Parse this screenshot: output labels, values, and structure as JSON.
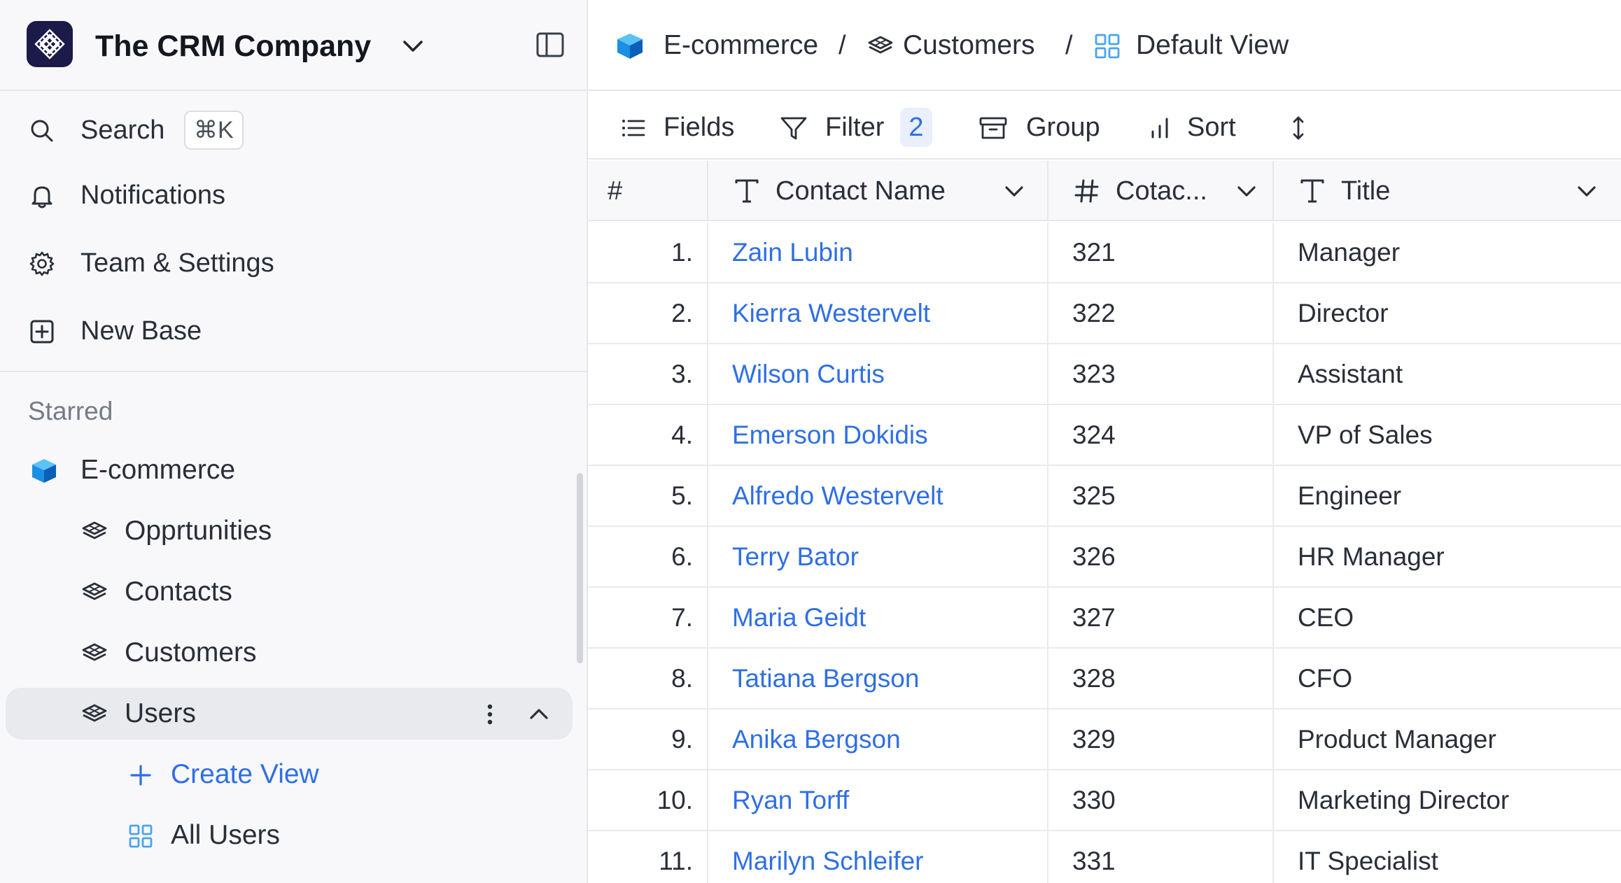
{
  "workspace": {
    "name": "The CRM Company"
  },
  "sidebar": {
    "search_label": "Search",
    "search_shortcut": "⌘K",
    "notifications_label": "Notifications",
    "settings_label": "Team & Settings",
    "new_base_label": "New Base",
    "starred_label": "Starred",
    "base": {
      "label": "E-commerce"
    },
    "tables": [
      {
        "label": "Opprtunities"
      },
      {
        "label": "Contacts"
      },
      {
        "label": "Customers"
      },
      {
        "label": "Users"
      }
    ],
    "create_view_label": "Create View",
    "views": [
      {
        "label": "All Users"
      }
    ]
  },
  "breadcrumb": {
    "base": "E-commerce",
    "separator": "/",
    "table": "Customers",
    "view": "Default View"
  },
  "toolbar": {
    "fields_label": "Fields",
    "filter_label": "Filter",
    "filter_count": "2",
    "group_label": "Group",
    "sort_label": "Sort"
  },
  "grid": {
    "columns": {
      "index": "#",
      "name": "Contact Name",
      "id": "Cotac...",
      "title": "Title"
    },
    "rows": [
      {
        "num": "1.",
        "name": "Zain Lubin",
        "id": "321",
        "title": "Manager"
      },
      {
        "num": "2.",
        "name": "Kierra Westervelt",
        "id": "322",
        "title": "Director"
      },
      {
        "num": "3.",
        "name": "Wilson Curtis",
        "id": "323",
        "title": "Assistant"
      },
      {
        "num": "4.",
        "name": "Emerson Dokidis",
        "id": "324",
        "title": "VP of Sales"
      },
      {
        "num": "5.",
        "name": "Alfredo Westervelt",
        "id": "325",
        "title": "Engineer"
      },
      {
        "num": "6.",
        "name": "Terry Bator",
        "id": "326",
        "title": "HR Manager"
      },
      {
        "num": "7.",
        "name": "Maria Geidt",
        "id": "327",
        "title": "CEO"
      },
      {
        "num": "8.",
        "name": "Tatiana Bergson",
        "id": "328",
        "title": "CFO"
      },
      {
        "num": "9.",
        "name": "Anika Bergson",
        "id": "329",
        "title": "Product Manager"
      },
      {
        "num": "10.",
        "name": "Ryan Torff",
        "id": "330",
        "title": "Marketing Director"
      },
      {
        "num": "11.",
        "name": "Marilyn Schleifer",
        "id": "331",
        "title": "IT Specialist"
      }
    ]
  },
  "colors": {
    "link": "#2f6fe4",
    "logo_bg": "#1b1a49",
    "base_icon": "#1a8fe3",
    "sidebar_bg": "#f8f8fa",
    "active_bg": "#e9eaee"
  },
  "icons": {
    "workspace": "logo-mark",
    "search": "search-icon",
    "notifications": "bell-icon",
    "settings": "gear-icon",
    "new_base": "plus-square-icon",
    "base": "cube-icon",
    "table": "layers-icon",
    "view": "grid-icon"
  }
}
